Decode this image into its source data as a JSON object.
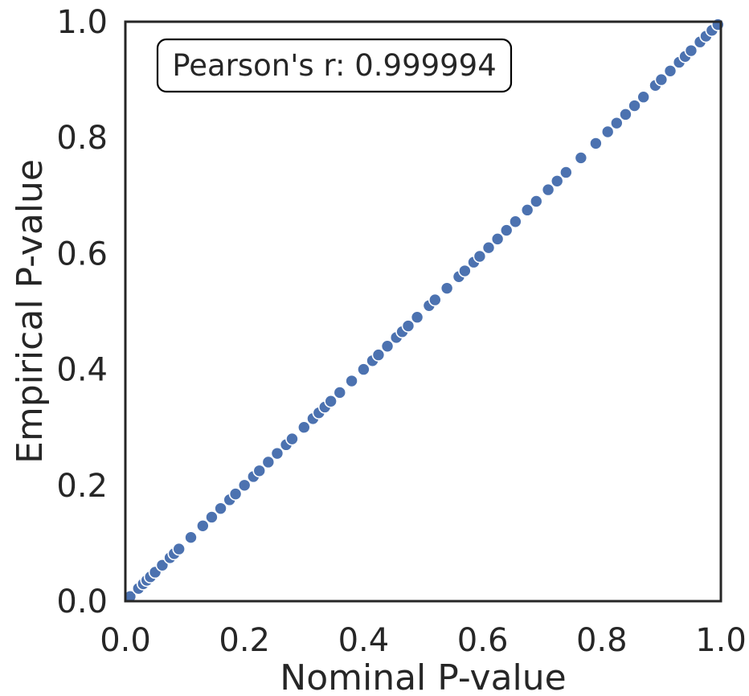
{
  "chart_data": {
    "type": "scatter",
    "title": "",
    "xlabel": "Nominal P-value",
    "ylabel": "Empirical P-value",
    "xlim": [
      0.0,
      1.0
    ],
    "ylim": [
      0.0,
      1.0
    ],
    "xticks": [
      "0.0",
      "0.2",
      "0.4",
      "0.6",
      "0.8",
      "1.0"
    ],
    "yticks": [
      "0.0",
      "0.2",
      "0.4",
      "0.6",
      "0.8",
      "1.0"
    ],
    "grid": false,
    "annotation": "Pearson's r: 0.999994",
    "marker_color": "#4c72b0",
    "marker_edge_color": "#ffffff",
    "series": [
      {
        "x": [
          0.008,
          0.022,
          0.03,
          0.036,
          0.042,
          0.05,
          0.062,
          0.075,
          0.082,
          0.09,
          0.11,
          0.13,
          0.145,
          0.16,
          0.175,
          0.185,
          0.2,
          0.215,
          0.225,
          0.24,
          0.255,
          0.27,
          0.28,
          0.3,
          0.315,
          0.325,
          0.335,
          0.345,
          0.36,
          0.38,
          0.4,
          0.415,
          0.425,
          0.44,
          0.455,
          0.465,
          0.475,
          0.49,
          0.51,
          0.52,
          0.54,
          0.56,
          0.57,
          0.585,
          0.595,
          0.61,
          0.625,
          0.64,
          0.655,
          0.675,
          0.69,
          0.71,
          0.725,
          0.74,
          0.765,
          0.79,
          0.81,
          0.825,
          0.84,
          0.855,
          0.87,
          0.89,
          0.9,
          0.915,
          0.93,
          0.94,
          0.95,
          0.965,
          0.975,
          0.985,
          0.995
        ],
        "y": [
          0.008,
          0.022,
          0.03,
          0.036,
          0.042,
          0.05,
          0.062,
          0.075,
          0.082,
          0.09,
          0.11,
          0.13,
          0.145,
          0.16,
          0.175,
          0.185,
          0.2,
          0.215,
          0.225,
          0.24,
          0.255,
          0.27,
          0.28,
          0.3,
          0.315,
          0.325,
          0.335,
          0.345,
          0.36,
          0.38,
          0.4,
          0.415,
          0.425,
          0.44,
          0.455,
          0.465,
          0.475,
          0.49,
          0.51,
          0.52,
          0.54,
          0.56,
          0.57,
          0.585,
          0.595,
          0.61,
          0.625,
          0.64,
          0.655,
          0.675,
          0.69,
          0.71,
          0.725,
          0.74,
          0.765,
          0.79,
          0.81,
          0.825,
          0.84,
          0.855,
          0.87,
          0.89,
          0.9,
          0.915,
          0.93,
          0.94,
          0.95,
          0.965,
          0.975,
          0.985,
          0.995
        ]
      }
    ]
  }
}
